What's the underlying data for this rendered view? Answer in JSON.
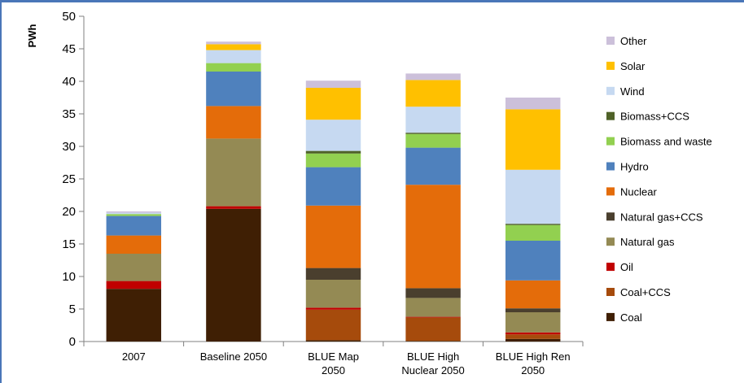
{
  "chart_data": {
    "type": "bar",
    "stacked": true,
    "ylabel": "PWh",
    "ylim": [
      0,
      50
    ],
    "yticks": [
      0,
      5,
      10,
      15,
      20,
      25,
      30,
      35,
      40,
      45,
      50
    ],
    "grid": false,
    "legend_position": "right",
    "categories": [
      [
        "2007"
      ],
      [
        "Baseline 2050"
      ],
      [
        "BLUE Map",
        "2050"
      ],
      [
        "BLUE High",
        "Nuclear 2050"
      ],
      [
        "BLUE High Ren",
        "2050"
      ]
    ],
    "series": [
      {
        "name": "Coal",
        "color": "#3f1f04",
        "values": [
          8.1,
          20.4,
          0.2,
          0.1,
          0.4
        ]
      },
      {
        "name": "Coal+CCS",
        "color": "#a64b0c",
        "values": [
          0,
          0,
          4.7,
          3.6,
          0.7
        ]
      },
      {
        "name": "Oil",
        "color": "#c00000",
        "values": [
          1.2,
          0.4,
          0.3,
          0.1,
          0.3
        ]
      },
      {
        "name": "Natural gas",
        "color": "#948a54",
        "values": [
          4.2,
          10.4,
          4.3,
          2.9,
          3.1
        ]
      },
      {
        "name": "Natural gas+CCS",
        "color": "#4a3f2e",
        "values": [
          0,
          0,
          1.8,
          1.5,
          0.6
        ]
      },
      {
        "name": "Nuclear",
        "color": "#e46c0a",
        "values": [
          2.8,
          5.0,
          9.6,
          15.9,
          4.3
        ]
      },
      {
        "name": "Hydro",
        "color": "#4f81bd",
        "values": [
          3.0,
          5.3,
          5.9,
          5.7,
          6.1
        ]
      },
      {
        "name": "Biomass and waste",
        "color": "#92d050",
        "values": [
          0.3,
          1.3,
          2.1,
          2.1,
          2.4
        ]
      },
      {
        "name": "Biomass+CCS",
        "color": "#4f6228",
        "values": [
          0,
          0,
          0.4,
          0.2,
          0.2
        ]
      },
      {
        "name": "Wind",
        "color": "#c6d9f1",
        "values": [
          0.2,
          2.0,
          4.8,
          4.0,
          8.3
        ]
      },
      {
        "name": "Solar",
        "color": "#ffc000",
        "values": [
          0,
          0.9,
          4.9,
          4.1,
          9.3
        ]
      },
      {
        "name": "Other",
        "color": "#ccc0da",
        "values": [
          0.2,
          0.4,
          1.1,
          1.0,
          1.8
        ]
      }
    ]
  }
}
